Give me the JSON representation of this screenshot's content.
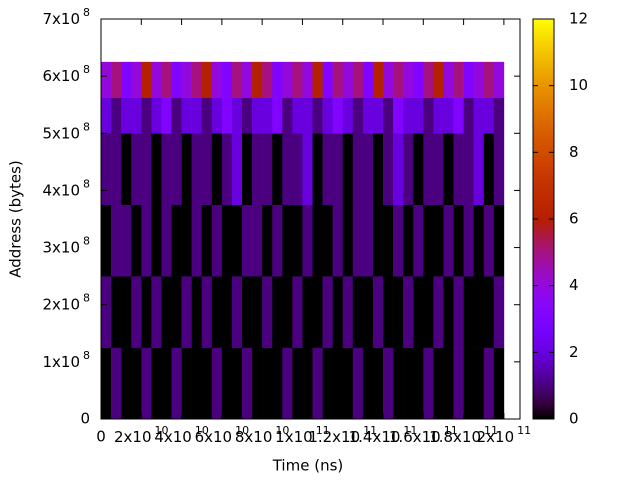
{
  "chart_data": {
    "type": "heatmap",
    "xlabel": "Time (ns)",
    "ylabel": "Address (bytes)",
    "xlim": [
      0,
      208000000000
    ],
    "ylim": [
      0,
      700000000
    ],
    "zlim": [
      0,
      12
    ],
    "x_edges": [
      0,
      5000000000,
      10000000000,
      15000000000,
      20000000000,
      25000000000,
      30000000000,
      35000000000,
      40000000000,
      45000000000,
      50000000000,
      55000000000,
      60000000000,
      65000000000,
      70000000000,
      75000000000,
      80000000000,
      85000000000,
      90000000000,
      95000000000,
      100000000000,
      105000000000,
      110000000000,
      115000000000,
      120000000000,
      125000000000,
      130000000000,
      135000000000,
      140000000000,
      145000000000,
      150000000000,
      155000000000,
      160000000000,
      165000000000,
      170000000000,
      175000000000,
      180000000000,
      185000000000,
      190000000000,
      195000000000,
      200000000000
    ],
    "y_edges": [
      0,
      125000000,
      250000000,
      375000000,
      500000000,
      562500000,
      625000000
    ],
    "z": [
      [
        0,
        1,
        0,
        0,
        1,
        0,
        0,
        1,
        0,
        0,
        0,
        1,
        0,
        0,
        1,
        0,
        0,
        0,
        1,
        0,
        0,
        1,
        0,
        0,
        0,
        1,
        0,
        0,
        1,
        0,
        0,
        0,
        1,
        0,
        0,
        1,
        0,
        0,
        1,
        0
      ],
      [
        1,
        0,
        0,
        1,
        0,
        1,
        0,
        0,
        1,
        0,
        1,
        0,
        0,
        1,
        0,
        0,
        1,
        0,
        0,
        1,
        0,
        0,
        1,
        0,
        1,
        0,
        0,
        1,
        0,
        0,
        1,
        0,
        0,
        1,
        0,
        1,
        0,
        0,
        0,
        1
      ],
      [
        0,
        1,
        1,
        0,
        1,
        0,
        1,
        0,
        0,
        1,
        0,
        1,
        0,
        0,
        1,
        1,
        0,
        1,
        0,
        0,
        1,
        0,
        0,
        1,
        0,
        1,
        1,
        0,
        0,
        1,
        0,
        1,
        0,
        0,
        1,
        0,
        1,
        0,
        1,
        0
      ],
      [
        1,
        1,
        0,
        1,
        1,
        0,
        1,
        1,
        0,
        1,
        1,
        0,
        1,
        2,
        0,
        1,
        1,
        0,
        1,
        1,
        2,
        0,
        1,
        1,
        0,
        1,
        1,
        0,
        1,
        2,
        1,
        0,
        1,
        1,
        0,
        1,
        1,
        2,
        0,
        1
      ],
      [
        2,
        1,
        2,
        2,
        1,
        2,
        3,
        1,
        2,
        2,
        1,
        2,
        3,
        2,
        1,
        2,
        2,
        3,
        1,
        2,
        2,
        1,
        2,
        3,
        2,
        1,
        2,
        2,
        1,
        3,
        2,
        2,
        1,
        2,
        2,
        3,
        1,
        2,
        2,
        1
      ],
      [
        4,
        5,
        3,
        4,
        6,
        4,
        5,
        3,
        4,
        5,
        6,
        4,
        3,
        5,
        4,
        6,
        5,
        3,
        4,
        5,
        4,
        6,
        3,
        5,
        4,
        5,
        3,
        6,
        4,
        5,
        4,
        3,
        5,
        6,
        4,
        5,
        3,
        4,
        5,
        4
      ]
    ],
    "xticks": [
      0,
      {
        "value": 20000000000,
        "label": "2x10",
        "exponent": "10"
      },
      {
        "value": 40000000000,
        "label": "4x10",
        "exponent": "10"
      },
      {
        "value": 60000000000,
        "label": "6x10",
        "exponent": "10"
      },
      {
        "value": 80000000000,
        "label": "8x10",
        "exponent": "10"
      },
      {
        "value": 100000000000,
        "label": "1x10",
        "exponent": "11"
      },
      {
        "value": 120000000000,
        "label": "1.2x10",
        "exponent": "11"
      },
      {
        "value": 140000000000,
        "label": "1.4x10",
        "exponent": "11"
      },
      {
        "value": 160000000000,
        "label": "1.6x10",
        "exponent": "11"
      },
      {
        "value": 180000000000,
        "label": "1.8x10",
        "exponent": "11"
      },
      {
        "value": 200000000000,
        "label": "2x10",
        "exponent": "11"
      }
    ],
    "yticks": [
      0,
      {
        "value": 100000000,
        "label": "1x10",
        "exponent": "8"
      },
      {
        "value": 200000000,
        "label": "2x10",
        "exponent": "8"
      },
      {
        "value": 300000000,
        "label": "3x10",
        "exponent": "8"
      },
      {
        "value": 400000000,
        "label": "4x10",
        "exponent": "8"
      },
      {
        "value": 500000000,
        "label": "5x10",
        "exponent": "8"
      },
      {
        "value": 600000000,
        "label": "6x10",
        "exponent": "8"
      },
      {
        "value": 700000000,
        "label": "7x10",
        "exponent": "8"
      }
    ],
    "zticks": [
      0,
      2,
      4,
      6,
      8,
      10,
      12
    ],
    "palette": "gnuplot"
  }
}
